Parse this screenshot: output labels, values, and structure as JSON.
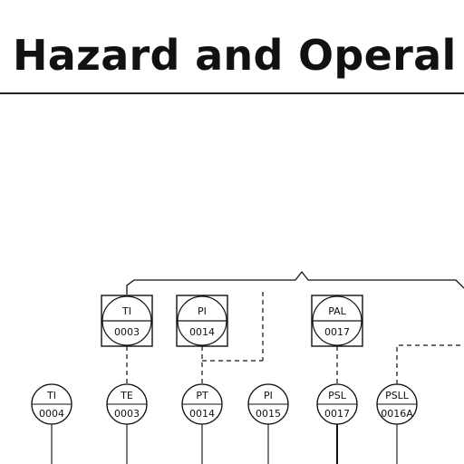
{
  "header": {
    "title": "Hazard and Operal"
  },
  "instruments": {
    "panel": [
      {
        "tag": "TI",
        "num": "0003"
      },
      {
        "tag": "PI",
        "num": "0014"
      },
      {
        "tag": "PAL",
        "num": "0017"
      }
    ],
    "field": [
      {
        "tag": "TI",
        "num": "0004"
      },
      {
        "tag": "TE",
        "num": "0003"
      },
      {
        "tag": "PT",
        "num": "0014"
      },
      {
        "tag": "PI",
        "num": "0015"
      },
      {
        "tag": "PSL",
        "num": "0017"
      },
      {
        "tag": "PSLL",
        "num": "0016A"
      }
    ]
  }
}
